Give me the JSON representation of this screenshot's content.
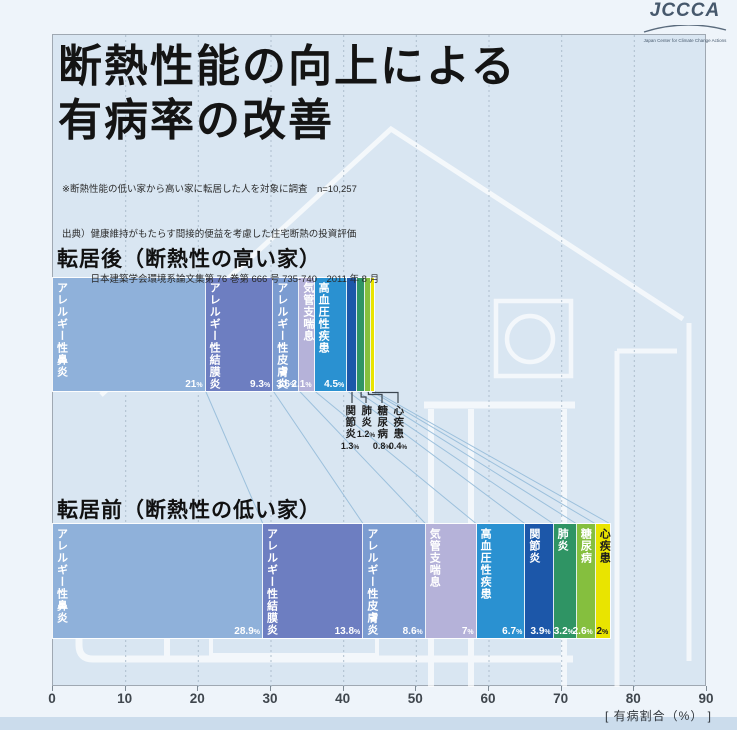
{
  "logo": {
    "text": "JCCCA",
    "subtext": "Japan Center for Climate Change Actions"
  },
  "title": {
    "line1": "断熱性能の向上による",
    "line2": "有病率の改善"
  },
  "notes": [
    "※断熱性能の低い家から高い家に転居した人を対象に調査　n=10,257",
    "出典）健康維持がもたらす間接的便益を考慮した住宅断熱の投資評価",
    "　　　日本建築学会環境系論文集第 76 巻第 666 号 735-740　2011 年 8 月"
  ],
  "chart_data": {
    "type": "bar",
    "orientation": "horizontal-stacked",
    "xlabel": "[ 有病割合（%） ]",
    "xlim": [
      0,
      90
    ],
    "xticks": [
      0,
      10,
      20,
      30,
      40,
      50,
      60,
      70,
      80,
      90
    ],
    "grid": "vertical-dashed",
    "categories": [
      "アレルギー性鼻炎",
      "アレルギー性結膜炎",
      "アレルギー性皮膚炎",
      "気管支喘息",
      "高血圧性疾患",
      "関節炎",
      "肺炎",
      "糖尿病",
      "心疾患"
    ],
    "colors": [
      "#8fb1da",
      "#6d7ec1",
      "#7b9cd1",
      "#b5b2d9",
      "#2a91d1",
      "#1c57a9",
      "#2f9464",
      "#85bf3e",
      "#e9e400"
    ],
    "label_colors": [
      "#ffffff",
      "#ffffff",
      "#ffffff",
      "#ffffff",
      "#ffffff",
      "#ffffff",
      "#ffffff",
      "#ffffff",
      "#1d1d1d"
    ],
    "series": [
      {
        "name": "転居後（断熱性の高い家）",
        "values": [
          21,
          9.3,
          3.6,
          2.1,
          4.5,
          1.3,
          1.2,
          0.8,
          0.4
        ],
        "labels": [
          "21%",
          "9.3%",
          "3.6%",
          "2.1%",
          "4.5%",
          "1.3%",
          "1.2%",
          "0.8%",
          "0.4%"
        ]
      },
      {
        "name": "転居前（断熱性の低い家）",
        "values": [
          28.9,
          13.8,
          8.6,
          7,
          6.7,
          3.9,
          3.2,
          2.6,
          2
        ],
        "labels": [
          "28.9%",
          "13.8%",
          "8.6%",
          "7%",
          "6.7%",
          "3.9%",
          "3.2%",
          "2.6%",
          "2%"
        ]
      }
    ]
  },
  "style": {
    "plot_bg": "#d9e6f2",
    "page_bg": "#eef4fa",
    "connector_color": "#9cc0dc",
    "leader_color": "#3c4650",
    "grid_color": "#aebfce"
  }
}
